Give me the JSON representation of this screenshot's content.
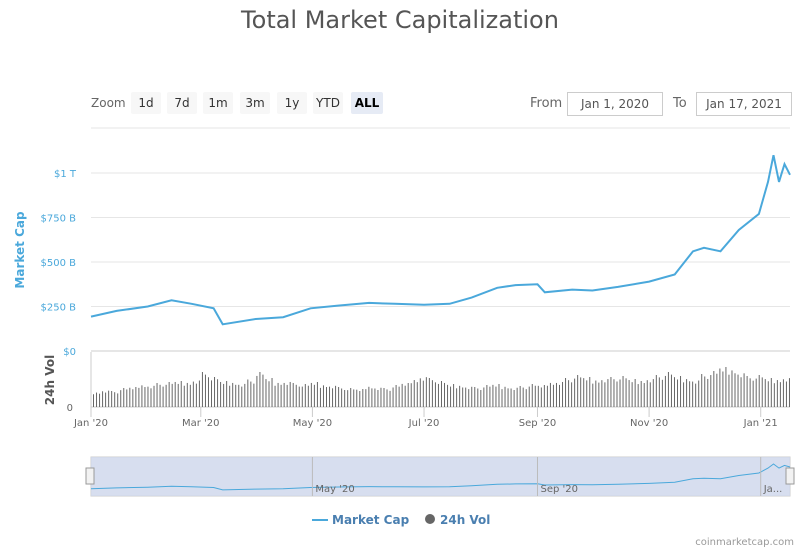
{
  "title": "Total Market Capitalization",
  "zoom": {
    "label": "Zoom",
    "buttons": [
      "1d",
      "7d",
      "1m",
      "3m",
      "1y",
      "YTD",
      "ALL"
    ],
    "selected": "ALL"
  },
  "range": {
    "from_label": "From",
    "from": "Jan 1, 2020",
    "to_label": "To",
    "to": "Jan 17, 2021"
  },
  "legend": {
    "market_cap": "Market Cap",
    "volume": "24h Vol"
  },
  "watermark": "coinmarketcap.com",
  "colors": {
    "market_cap": "#4aa8db",
    "volume": "#666666",
    "navigator": "#d0d8ec"
  },
  "chart_data": {
    "type": "line",
    "title": "Total Market Capitalization",
    "x_range": [
      "2020-01-01",
      "2021-01-17"
    ],
    "x_ticks": [
      "Jan '20",
      "Mar '20",
      "May '20",
      "Jul '20",
      "Sep '20",
      "Nov '20",
      "Jan '21"
    ],
    "y_axis": {
      "label": "Market Cap",
      "ticks": [
        "$0",
        "$250 B",
        "$500 B",
        "$750 B",
        "$1 T"
      ],
      "ylim_billions": [
        0,
        1000
      ]
    },
    "volume_axis": {
      "label": "24h Vol",
      "ticks": [
        "0"
      ]
    },
    "navigator_labels": [
      "May '20",
      "Sep '20",
      "Ja..."
    ],
    "legend_placement": "bottom",
    "grid": true,
    "series": [
      {
        "name": "Market Cap",
        "unit": "billion USD",
        "points": [
          [
            "2020-01-01",
            193
          ],
          [
            "2020-01-15",
            225
          ],
          [
            "2020-02-01",
            250
          ],
          [
            "2020-02-14",
            285
          ],
          [
            "2020-02-25",
            265
          ],
          [
            "2020-03-08",
            240
          ],
          [
            "2020-03-13",
            150
          ],
          [
            "2020-03-31",
            180
          ],
          [
            "2020-04-15",
            190
          ],
          [
            "2020-04-30",
            240
          ],
          [
            "2020-05-15",
            255
          ],
          [
            "2020-06-01",
            270
          ],
          [
            "2020-06-15",
            265
          ],
          [
            "2020-07-01",
            260
          ],
          [
            "2020-07-15",
            265
          ],
          [
            "2020-07-27",
            300
          ],
          [
            "2020-08-10",
            355
          ],
          [
            "2020-08-20",
            370
          ],
          [
            "2020-09-01",
            375
          ],
          [
            "2020-09-05",
            330
          ],
          [
            "2020-09-20",
            345
          ],
          [
            "2020-10-01",
            340
          ],
          [
            "2020-10-15",
            360
          ],
          [
            "2020-11-01",
            390
          ],
          [
            "2020-11-15",
            430
          ],
          [
            "2020-11-25",
            560
          ],
          [
            "2020-12-01",
            580
          ],
          [
            "2020-12-10",
            560
          ],
          [
            "2020-12-20",
            680
          ],
          [
            "2020-12-31",
            770
          ],
          [
            "2021-01-05",
            950
          ],
          [
            "2021-01-08",
            1100
          ],
          [
            "2021-01-11",
            950
          ],
          [
            "2021-01-14",
            1050
          ],
          [
            "2021-01-17",
            990
          ]
        ]
      },
      {
        "name": "24h Vol",
        "unit": "relative",
        "interval_days": 5,
        "values": [
          30,
          34,
          32,
          38,
          40,
          45,
          44,
          48,
          50,
          52,
          50,
          55,
          70,
          60,
          52,
          50,
          48,
          55,
          70,
          58,
          50,
          52,
          48,
          46,
          50,
          45,
          44,
          40,
          38,
          36,
          42,
          40,
          38,
          44,
          48,
          56,
          62,
          58,
          52,
          46,
          44,
          42,
          40,
          44,
          46,
          42,
          40,
          42,
          46,
          44,
          50,
          52,
          58,
          64,
          60,
          55,
          58,
          60,
          62,
          56,
          54,
          58,
          64,
          70,
          62,
          58,
          55,
          66,
          72,
          80,
          76,
          70,
          62,
          64,
          58,
          56,
          60
        ]
      }
    ]
  }
}
